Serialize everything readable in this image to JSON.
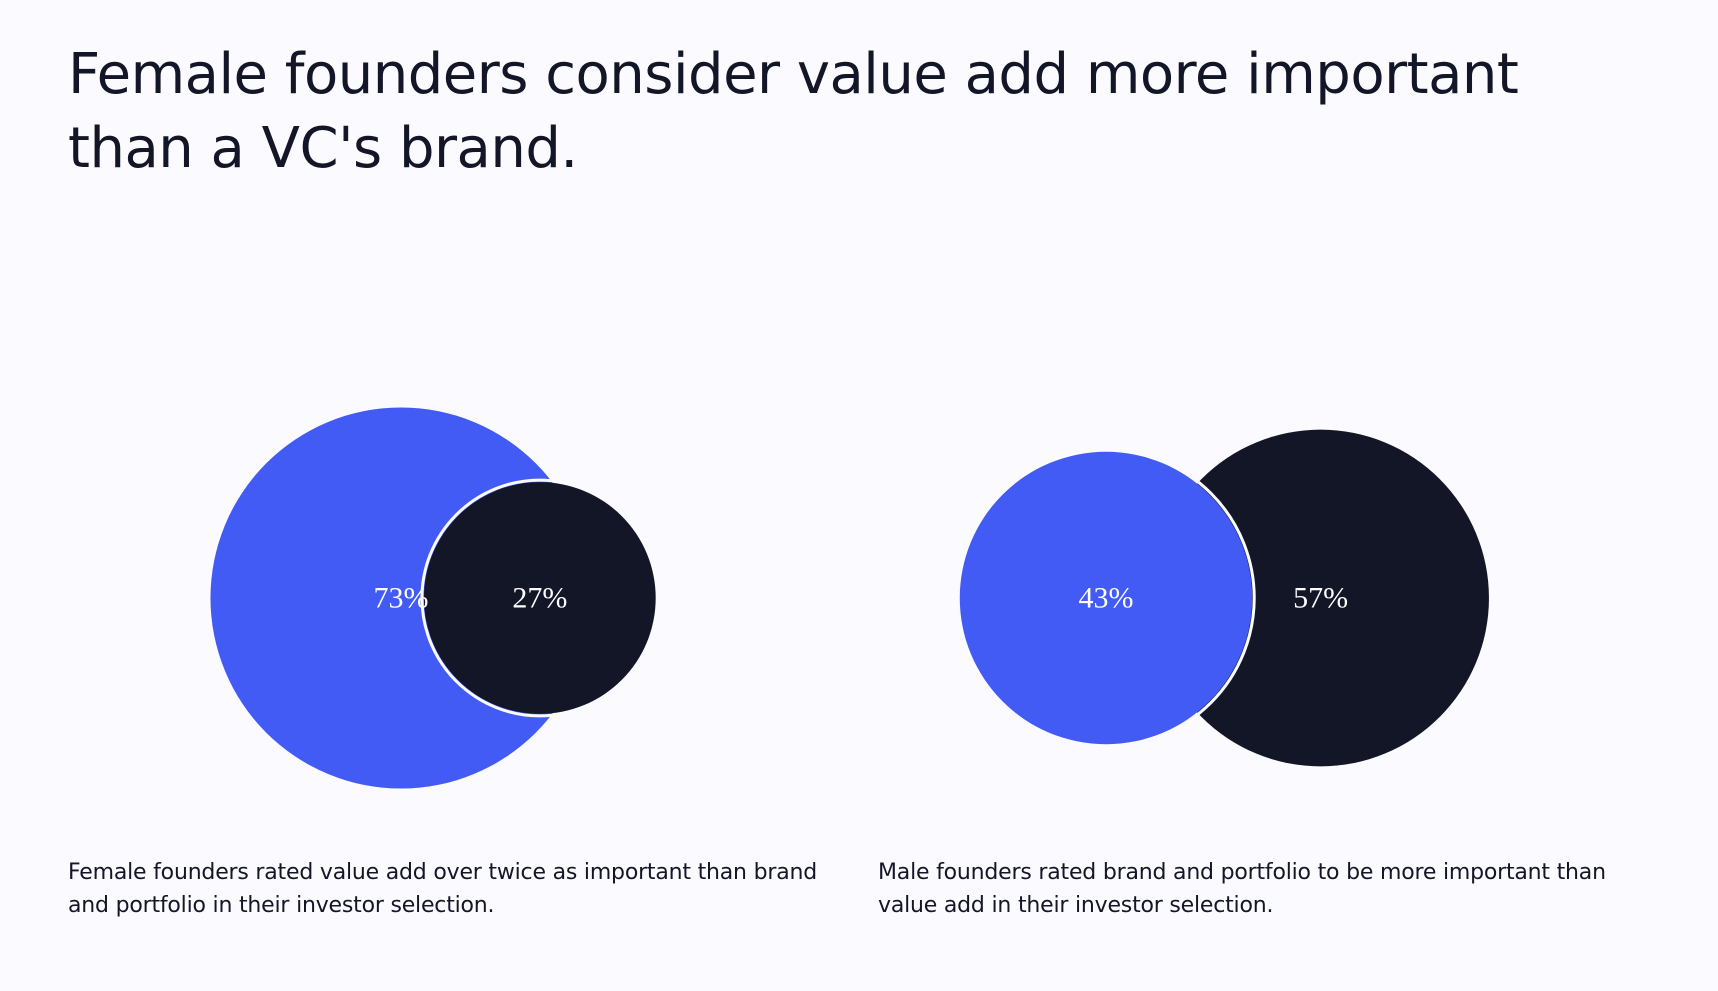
{
  "title": "Female founders consider value add more important than a VC's brand.",
  "colors": {
    "background": "#fafaff",
    "value_add": "#435bf5",
    "brand_portfolio": "#131627",
    "label": "#ffffff"
  },
  "chart_data": [
    {
      "type": "bubble-venn",
      "group": "Female founders",
      "values": [
        {
          "category": "value add",
          "value": 73,
          "label": "73%",
          "color": "#435bf5"
        },
        {
          "category": "brand and portfolio",
          "value": 27,
          "label": "27%",
          "color": "#131627"
        }
      ],
      "caption": "Female founders rated value add over twice as important than brand and portfolio in their investor selection."
    },
    {
      "type": "bubble-venn",
      "group": "Male founders",
      "values": [
        {
          "category": "value add",
          "value": 43,
          "label": "43%",
          "color": "#435bf5"
        },
        {
          "category": "brand and portfolio",
          "value": 57,
          "label": "57%",
          "color": "#131627"
        }
      ],
      "caption": "Male founders rated brand and portfolio to be more important than value add in their investor selection."
    }
  ]
}
